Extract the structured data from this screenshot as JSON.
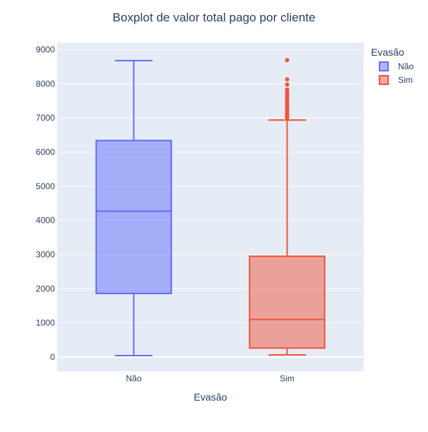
{
  "chart_data": {
    "type": "box",
    "title": "Boxplot de valor total pago por cliente",
    "xlabel": "Evasão",
    "ylabel": "",
    "ylim": [
      -420,
      9200
    ],
    "yticks": [
      0,
      1000,
      2000,
      3000,
      4000,
      5000,
      6000,
      7000,
      8000,
      9000
    ],
    "categories": [
      "Não",
      "Sim"
    ],
    "legend": {
      "title": "Evasão",
      "position": "top-right"
    },
    "grid": true,
    "series": [
      {
        "name": "Não",
        "category": "Não",
        "color": "#636efa",
        "min": 40,
        "q1": 1860,
        "median": 4270,
        "q3": 6340,
        "max": 8680,
        "outliers": []
      },
      {
        "name": "Sim",
        "category": "Sim",
        "color": "#ef553b",
        "min": 60,
        "q1": 260,
        "median": 1100,
        "q3": 2950,
        "max": 6940,
        "outliers": [
          8690,
          8130,
          7980,
          7830,
          7740,
          7690,
          7640,
          7570,
          7490,
          7430,
          7380,
          7320,
          7260,
          7210,
          7150,
          7110,
          7060,
          7010
        ]
      }
    ]
  }
}
